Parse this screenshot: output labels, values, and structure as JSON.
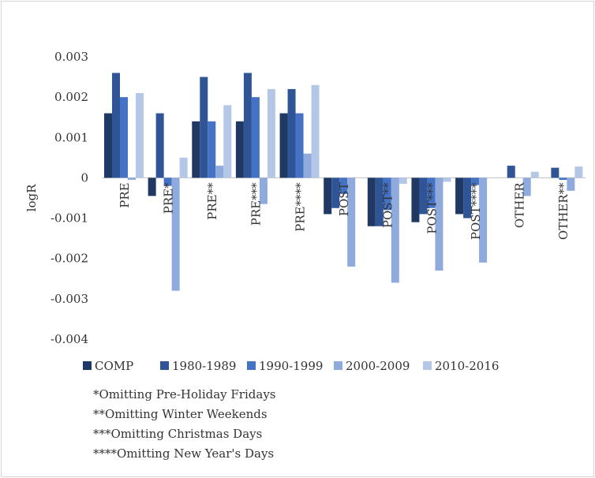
{
  "chart_data": {
    "type": "bar",
    "title": "",
    "xlabel": "",
    "ylabel": "logR",
    "ylim": [
      -0.004,
      0.003
    ],
    "yticks": [
      "0.003",
      "0.002",
      "0.001",
      "0",
      "-0.001",
      "-0.002",
      "-0.003",
      "-0.004"
    ],
    "ytick_values": [
      0.003,
      0.002,
      0.001,
      0,
      -0.001,
      -0.002,
      -0.003,
      -0.004
    ],
    "grid": false,
    "legend_position": "bottom",
    "categories": [
      "PRE",
      "PRE*",
      "PRE**",
      "PRE***",
      "PRE****",
      "POST",
      "POST**",
      "POST***",
      "POST****",
      "OTHER",
      "OTHER**"
    ],
    "series": [
      {
        "name": "COMP",
        "color": "#1f3864",
        "values": [
          0.0016,
          -0.00045,
          0.0014,
          0.0014,
          0.0016,
          -0.0009,
          -0.0012,
          -0.0011,
          -0.0009,
          0,
          0
        ]
      },
      {
        "name": "1980-1989",
        "color": "#2f5597",
        "values": [
          0.0026,
          0.0016,
          0.0025,
          0.0026,
          0.0022,
          -0.00075,
          -0.0012,
          -0.0009,
          -0.001,
          0.0003,
          0.00025
        ]
      },
      {
        "name": "1990-1999",
        "color": "#4472c4",
        "values": [
          0.002,
          -0.0002,
          0.0014,
          0.002,
          0.0016,
          -0.0004,
          -0.0008,
          -0.00075,
          -0.00018,
          0,
          -5e-05
        ]
      },
      {
        "name": "2000-2009",
        "color": "#8faadc",
        "values": [
          -5e-05,
          -0.0028,
          0.0003,
          -0.00065,
          0.0006,
          -0.0022,
          -0.0026,
          -0.0023,
          -0.0021,
          -0.00045,
          -0.00032
        ]
      },
      {
        "name": "2010-2016",
        "color": "#b4c7e7",
        "values": [
          0.0021,
          0.0005,
          0.0018,
          0.0022,
          0.0023,
          0,
          -0.00015,
          -0.0001,
          0,
          0.00015,
          0.00028
        ]
      }
    ]
  },
  "notes": [
    "*Omitting Pre-Holiday Fridays",
    "**Omitting Winter Weekends",
    "***Omitting Christmas Days",
    "****Omitting New Year's Days"
  ]
}
